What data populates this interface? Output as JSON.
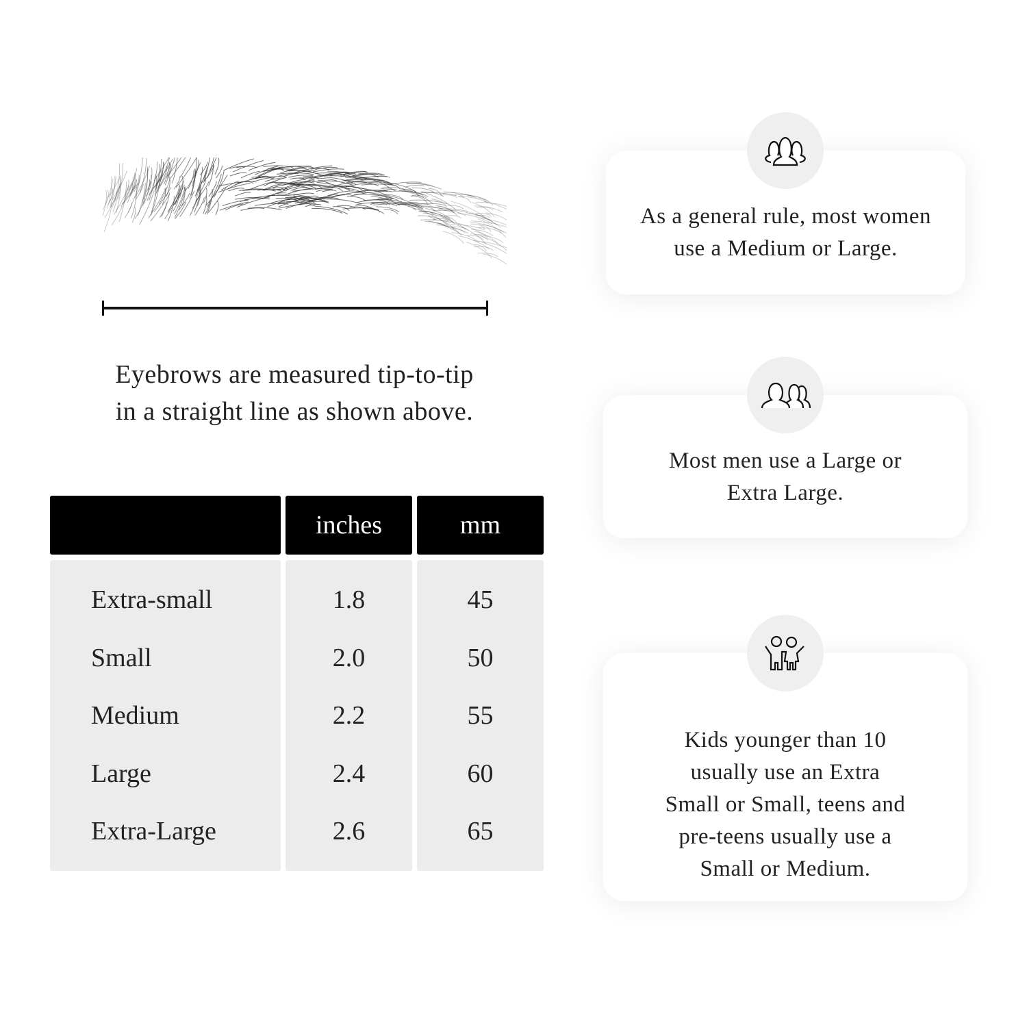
{
  "measure": {
    "caption_line1": "Eyebrows are measured tip-to-tip",
    "caption_line2": "in a straight line as shown above."
  },
  "table": {
    "headers": [
      "",
      "inches",
      "mm"
    ],
    "rows": [
      {
        "size": "Extra-small",
        "inches": "1.8",
        "mm": "45"
      },
      {
        "size": "Small",
        "inches": "2.0",
        "mm": "50"
      },
      {
        "size": "Medium",
        "inches": "2.2",
        "mm": "55"
      },
      {
        "size": "Large",
        "inches": "2.4",
        "mm": "60"
      },
      {
        "size": "Extra-Large",
        "inches": "2.6",
        "mm": "65"
      }
    ]
  },
  "cards": [
    {
      "icon": "women-group-icon",
      "line1": "As a general rule, most women",
      "line2": "use a Medium or Large."
    },
    {
      "icon": "men-group-icon",
      "line1": "Most men use a Large or",
      "line2": "Extra Large."
    },
    {
      "icon": "kids-icon",
      "line1": "Kids younger than 10",
      "line2": "usually use an Extra",
      "line3": "Small or Small, teens and",
      "line4": "pre-teens usually use a",
      "line5": "Small or Medium."
    }
  ]
}
